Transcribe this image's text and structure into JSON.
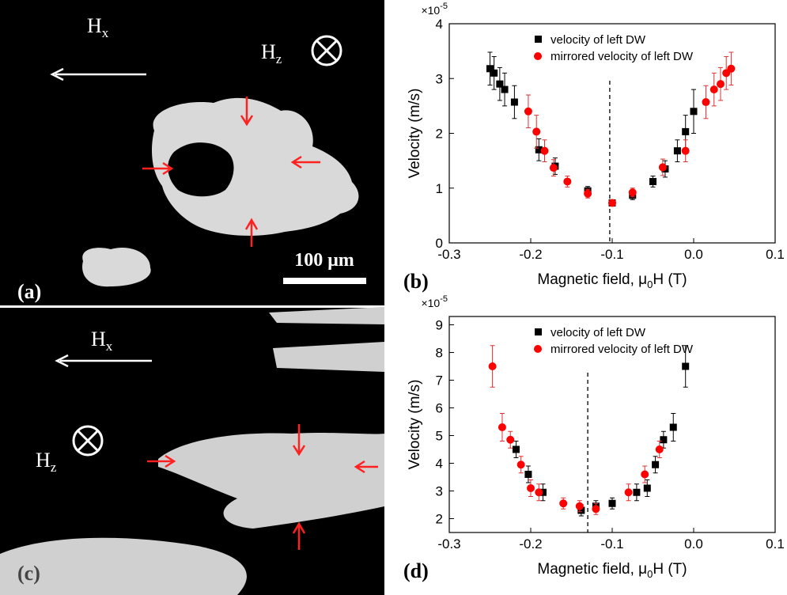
{
  "images": {
    "a": {
      "label": "(a)",
      "hx": "H",
      "hx_sub": "x",
      "hz": "H",
      "hz_sub": "z",
      "scale": "100 μm"
    },
    "c": {
      "label": "(c)",
      "hx": "H",
      "hx_sub": "x",
      "hz": "H",
      "hz_sub": "z"
    }
  },
  "chart_data": [
    {
      "type": "scatter",
      "panel_label": "(b)",
      "x_label": "Magnetic field, μ",
      "x_label_sub": "0",
      "x_label_end": "H (T)",
      "y_label": "Velocity (m/s)",
      "multiplier": "×10",
      "multiplier_exp": "-5",
      "xlim": [
        -0.3,
        0.1
      ],
      "xticks": [
        -0.3,
        -0.2,
        -0.1,
        {
          "value": 0,
          "label": "0.0"
        },
        0.1
      ],
      "ylim": [
        0,
        4
      ],
      "yticks": [
        0,
        1,
        2,
        3,
        4
      ],
      "vline": -0.103,
      "series": [
        {
          "name": "velocity of left DW",
          "color": "#000000",
          "marker": "square",
          "x": [
            -0.25,
            -0.245,
            -0.238,
            -0.232,
            -0.22,
            -0.19,
            -0.17,
            -0.13,
            -0.1,
            -0.075,
            -0.05,
            -0.035,
            -0.02,
            -0.01,
            0.0
          ],
          "values": [
            3.18,
            3.1,
            2.9,
            2.8,
            2.57,
            1.7,
            1.4,
            0.95,
            0.73,
            0.87,
            1.12,
            1.35,
            1.68,
            2.03,
            2.4
          ],
          "errors": [
            0.3,
            0.3,
            0.3,
            0.3,
            0.3,
            0.2,
            0.15,
            0.08,
            0.05,
            0.08,
            0.1,
            0.15,
            0.2,
            0.3,
            0.4
          ]
        },
        {
          "name": "mirrored velocity of left DW",
          "color": "#ff0000",
          "marker": "circle",
          "x": [
            -0.203,
            -0.193,
            -0.183,
            -0.172,
            -0.155,
            -0.13,
            -0.1,
            -0.075,
            -0.038,
            -0.01,
            0.015,
            0.025,
            0.033,
            0.04,
            0.046
          ],
          "values": [
            2.4,
            2.03,
            1.68,
            1.37,
            1.12,
            0.9,
            0.73,
            0.92,
            1.38,
            1.68,
            2.57,
            2.8,
            2.9,
            3.1,
            3.18
          ],
          "errors": [
            0.3,
            0.3,
            0.2,
            0.15,
            0.1,
            0.08,
            0.05,
            0.08,
            0.15,
            0.2,
            0.3,
            0.3,
            0.3,
            0.3,
            0.3
          ]
        }
      ]
    },
    {
      "type": "scatter",
      "panel_label": "(d)",
      "x_label": "Magnetic field, μ",
      "x_label_sub": "0",
      "x_label_end": "H (T)",
      "y_label": "Velocity (m/s)",
      "multiplier": "×10",
      "multiplier_exp": "-5",
      "xlim": [
        -0.3,
        0.1
      ],
      "xticks": [
        -0.3,
        -0.2,
        -0.1,
        {
          "value": 0,
          "label": "0.0"
        },
        0.1
      ],
      "ylim": [
        1.5,
        9.3
      ],
      "yticks": [
        2,
        3,
        4,
        5,
        6,
        7,
        8,
        9
      ],
      "vline": -0.13,
      "series": [
        {
          "name": "velocity of left DW",
          "color": "#000000",
          "marker": "square",
          "x": [
            -0.218,
            -0.203,
            -0.185,
            -0.138,
            -0.12,
            -0.1,
            -0.07,
            -0.057,
            -0.047,
            -0.037,
            -0.025,
            -0.01
          ],
          "values": [
            4.5,
            3.6,
            2.95,
            2.3,
            2.45,
            2.55,
            2.95,
            3.1,
            3.95,
            4.85,
            5.3,
            7.5
          ],
          "errors": [
            0.3,
            0.3,
            0.3,
            0.2,
            0.2,
            0.2,
            0.3,
            0.3,
            0.3,
            0.3,
            0.5,
            0.75
          ]
        },
        {
          "name": "mirrored velocity of left DW",
          "color": "#ff0000",
          "marker": "circle",
          "x": [
            -0.247,
            -0.235,
            -0.225,
            -0.212,
            -0.2,
            -0.19,
            -0.16,
            -0.14,
            -0.12,
            -0.08,
            -0.06,
            -0.042
          ],
          "values": [
            7.5,
            5.3,
            4.85,
            3.95,
            3.1,
            2.95,
            2.55,
            2.45,
            2.35,
            2.95,
            3.6,
            4.5
          ],
          "errors": [
            0.75,
            0.5,
            0.3,
            0.3,
            0.3,
            0.3,
            0.2,
            0.2,
            0.2,
            0.3,
            0.3,
            0.3
          ]
        }
      ]
    }
  ]
}
